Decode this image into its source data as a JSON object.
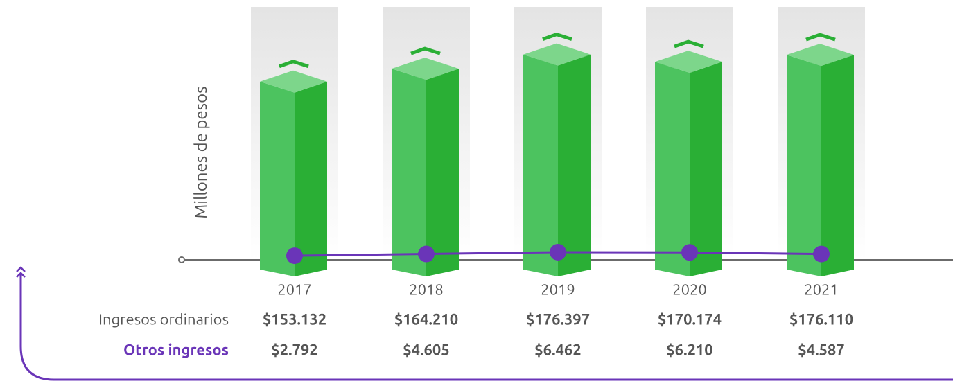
{
  "chart_data": {
    "type": "bar-line",
    "y_label": "Millones de pesos",
    "categories": [
      "2017",
      "2018",
      "2019",
      "2020",
      "2021"
    ],
    "series": [
      {
        "name": "Ingresos ordinarios",
        "color": "#2aaf35",
        "values": [
          153132,
          164210,
          176397,
          170174,
          176110
        ],
        "value_labels": [
          "$153.132",
          "$164.210",
          "$176.397",
          "$170.174",
          "$176.110"
        ]
      },
      {
        "name": "Otros ingresos",
        "color": "#6a35b8",
        "values": [
          2792,
          4605,
          6462,
          6210,
          4587
        ],
        "value_labels": [
          "$2.792",
          "$4.605",
          "$6.462",
          "$6.210",
          "$4.587"
        ]
      }
    ]
  }
}
